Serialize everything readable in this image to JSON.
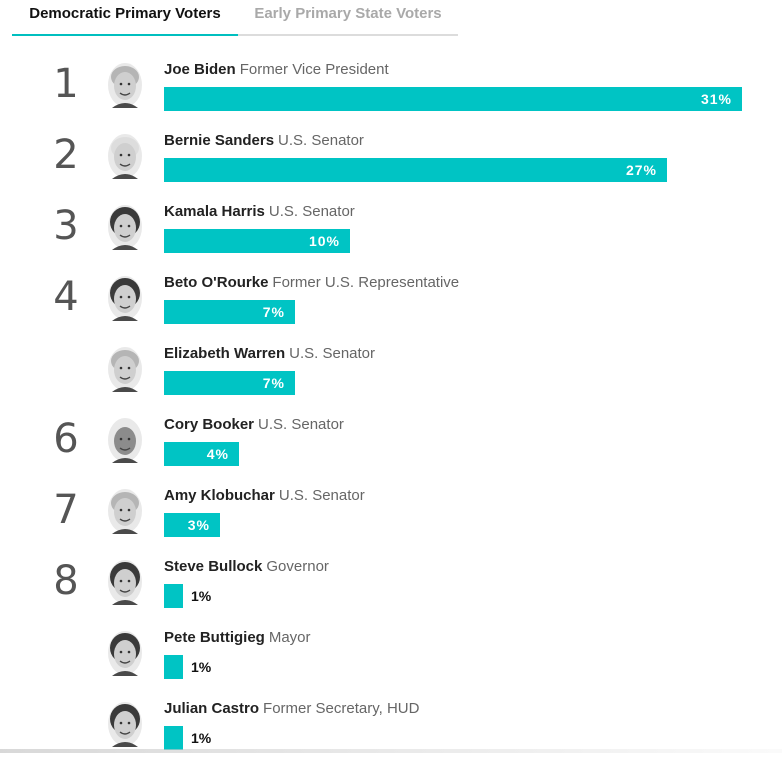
{
  "tabs": [
    {
      "label": "Democratic Primary Voters",
      "active": true
    },
    {
      "label": "Early Primary State Voters",
      "active": false
    }
  ],
  "colors": {
    "bar": "#00c4c4",
    "tab_accent": "#00bfbf",
    "rank": "#555555",
    "title": "#666666"
  },
  "chart_data": {
    "type": "bar",
    "orientation": "horizontal",
    "unit": "%",
    "xlim": [
      0,
      31
    ],
    "grid": false,
    "legend": "none",
    "candidates": [
      {
        "rank": "1",
        "name": "Joe Biden",
        "title": "Former Vice President",
        "value": 31,
        "label": "31%",
        "avatar": "face-light-icon"
      },
      {
        "rank": "2",
        "name": "Bernie Sanders",
        "title": "U.S. Senator",
        "value": 27,
        "label": "27%",
        "avatar": "face-white-hair-icon"
      },
      {
        "rank": "3",
        "name": "Kamala Harris",
        "title": "U.S. Senator",
        "value": 10,
        "label": "10%",
        "avatar": "face-dark-hair-icon"
      },
      {
        "rank": "4",
        "name": "Beto O'Rourke",
        "title": "Former U.S. Representative",
        "value": 7,
        "label": "7%",
        "avatar": "face-dark-hair-icon"
      },
      {
        "rank": "",
        "name": "Elizabeth Warren",
        "title": "U.S. Senator",
        "value": 7,
        "label": "7%",
        "avatar": "face-light-icon"
      },
      {
        "rank": "6",
        "name": "Cory Booker",
        "title": "U.S. Senator",
        "value": 4,
        "label": "4%",
        "avatar": "face-bald-icon"
      },
      {
        "rank": "7",
        "name": "Amy Klobuchar",
        "title": "U.S. Senator",
        "value": 3,
        "label": "3%",
        "avatar": "face-light-icon"
      },
      {
        "rank": "8",
        "name": "Steve Bullock",
        "title": "Governor",
        "value": 1,
        "label": "1%",
        "avatar": "face-dark-hair-icon"
      },
      {
        "rank": "",
        "name": "Pete Buttigieg",
        "title": "Mayor",
        "value": 1,
        "label": "1%",
        "avatar": "face-dark-hair-icon"
      },
      {
        "rank": "",
        "name": "Julian Castro",
        "title": "Former Secretary, HUD",
        "value": 1,
        "label": "1%",
        "avatar": "face-dark-hair-icon"
      }
    ]
  }
}
